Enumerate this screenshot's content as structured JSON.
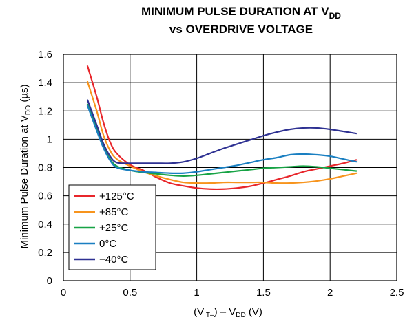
{
  "chart_data": {
    "type": "line",
    "title": {
      "line1_main": "MINIMUM PULSE DURATION AT V",
      "line1_sub": "DD",
      "line2": "vs OVERDRIVE VOLTAGE"
    },
    "xlabel": {
      "p1": "(V",
      "p1_sub": "IT–",
      "p2": ") – V",
      "p2_sub": "DD",
      "p3": " (V)"
    },
    "ylabel": {
      "p1": "Minimum Pulse Duration at V",
      "p1_sub": "DD",
      "p2": " (µs)"
    },
    "xlim": [
      0,
      2.5
    ],
    "ylim": [
      0,
      1.6
    ],
    "xticks": [
      0,
      0.5,
      1,
      1.5,
      2,
      2.5
    ],
    "xtick_labels": [
      "0",
      "0.5",
      "1",
      "1.5",
      "2",
      "2.5"
    ],
    "yticks": [
      0,
      0.2,
      0.4,
      0.6,
      0.8,
      1,
      1.2,
      1.4,
      1.6
    ],
    "ytick_labels": [
      "0",
      "0.2",
      "0.4",
      "0.6",
      "0.8",
      "1",
      "1.2",
      "1.4",
      "1.6"
    ],
    "grid": true,
    "legend_position": "bottom-left",
    "series": [
      {
        "name": "+125°C",
        "color": "#e8262b",
        "x": [
          0.18,
          0.25,
          0.3,
          0.35,
          0.4,
          0.5,
          0.6,
          0.7,
          0.8,
          0.9,
          1.0,
          1.1,
          1.2,
          1.3,
          1.4,
          1.5,
          1.6,
          1.7,
          1.8,
          1.9,
          2.0,
          2.1,
          2.2
        ],
        "y": [
          1.52,
          1.3,
          1.12,
          0.98,
          0.9,
          0.82,
          0.78,
          0.73,
          0.69,
          0.67,
          0.655,
          0.648,
          0.648,
          0.655,
          0.668,
          0.69,
          0.715,
          0.74,
          0.77,
          0.79,
          0.81,
          0.83,
          0.855
        ]
      },
      {
        "name": "+85°C",
        "color": "#f7941d",
        "x": [
          0.18,
          0.25,
          0.3,
          0.35,
          0.4,
          0.5,
          0.6,
          0.7,
          0.8,
          0.9,
          1.0,
          1.1,
          1.2,
          1.3,
          1.4,
          1.5,
          1.6,
          1.7,
          1.8,
          1.9,
          2.0,
          2.1,
          2.2
        ],
        "y": [
          1.41,
          1.2,
          1.03,
          0.92,
          0.86,
          0.81,
          0.77,
          0.74,
          0.715,
          0.695,
          0.69,
          0.69,
          0.695,
          0.695,
          0.695,
          0.695,
          0.69,
          0.69,
          0.695,
          0.705,
          0.72,
          0.74,
          0.76
        ]
      },
      {
        "name": "+25°C",
        "color": "#17a345",
        "x": [
          0.18,
          0.25,
          0.3,
          0.35,
          0.4,
          0.5,
          0.6,
          0.7,
          0.8,
          0.9,
          1.0,
          1.1,
          1.2,
          1.3,
          1.4,
          1.5,
          1.6,
          1.7,
          1.8,
          1.9,
          2.0,
          2.1,
          2.2
        ],
        "y": [
          1.25,
          1.08,
          0.95,
          0.86,
          0.81,
          0.78,
          0.765,
          0.755,
          0.745,
          0.74,
          0.745,
          0.755,
          0.765,
          0.775,
          0.785,
          0.795,
          0.8,
          0.805,
          0.81,
          0.805,
          0.795,
          0.785,
          0.775
        ]
      },
      {
        "name": "0°C",
        "color": "#1a7fc1",
        "x": [
          0.18,
          0.25,
          0.3,
          0.35,
          0.4,
          0.5,
          0.6,
          0.7,
          0.8,
          0.9,
          1.0,
          1.1,
          1.2,
          1.3,
          1.4,
          1.5,
          1.6,
          1.7,
          1.8,
          1.9,
          2.0,
          2.1,
          2.2
        ],
        "y": [
          1.24,
          1.06,
          0.94,
          0.85,
          0.8,
          0.78,
          0.77,
          0.765,
          0.76,
          0.76,
          0.77,
          0.785,
          0.8,
          0.815,
          0.835,
          0.855,
          0.87,
          0.89,
          0.895,
          0.89,
          0.88,
          0.86,
          0.84
        ]
      },
      {
        "name": "−40°C",
        "color": "#2e3192",
        "x": [
          0.18,
          0.25,
          0.3,
          0.35,
          0.4,
          0.5,
          0.6,
          0.7,
          0.8,
          0.9,
          1.0,
          1.1,
          1.2,
          1.3,
          1.4,
          1.5,
          1.6,
          1.7,
          1.8,
          1.9,
          2.0,
          2.1,
          2.2
        ],
        "y": [
          1.28,
          1.1,
          0.97,
          0.88,
          0.835,
          0.83,
          0.83,
          0.83,
          0.83,
          0.84,
          0.865,
          0.9,
          0.935,
          0.965,
          0.995,
          1.025,
          1.05,
          1.07,
          1.08,
          1.08,
          1.07,
          1.055,
          1.04
        ]
      }
    ]
  }
}
